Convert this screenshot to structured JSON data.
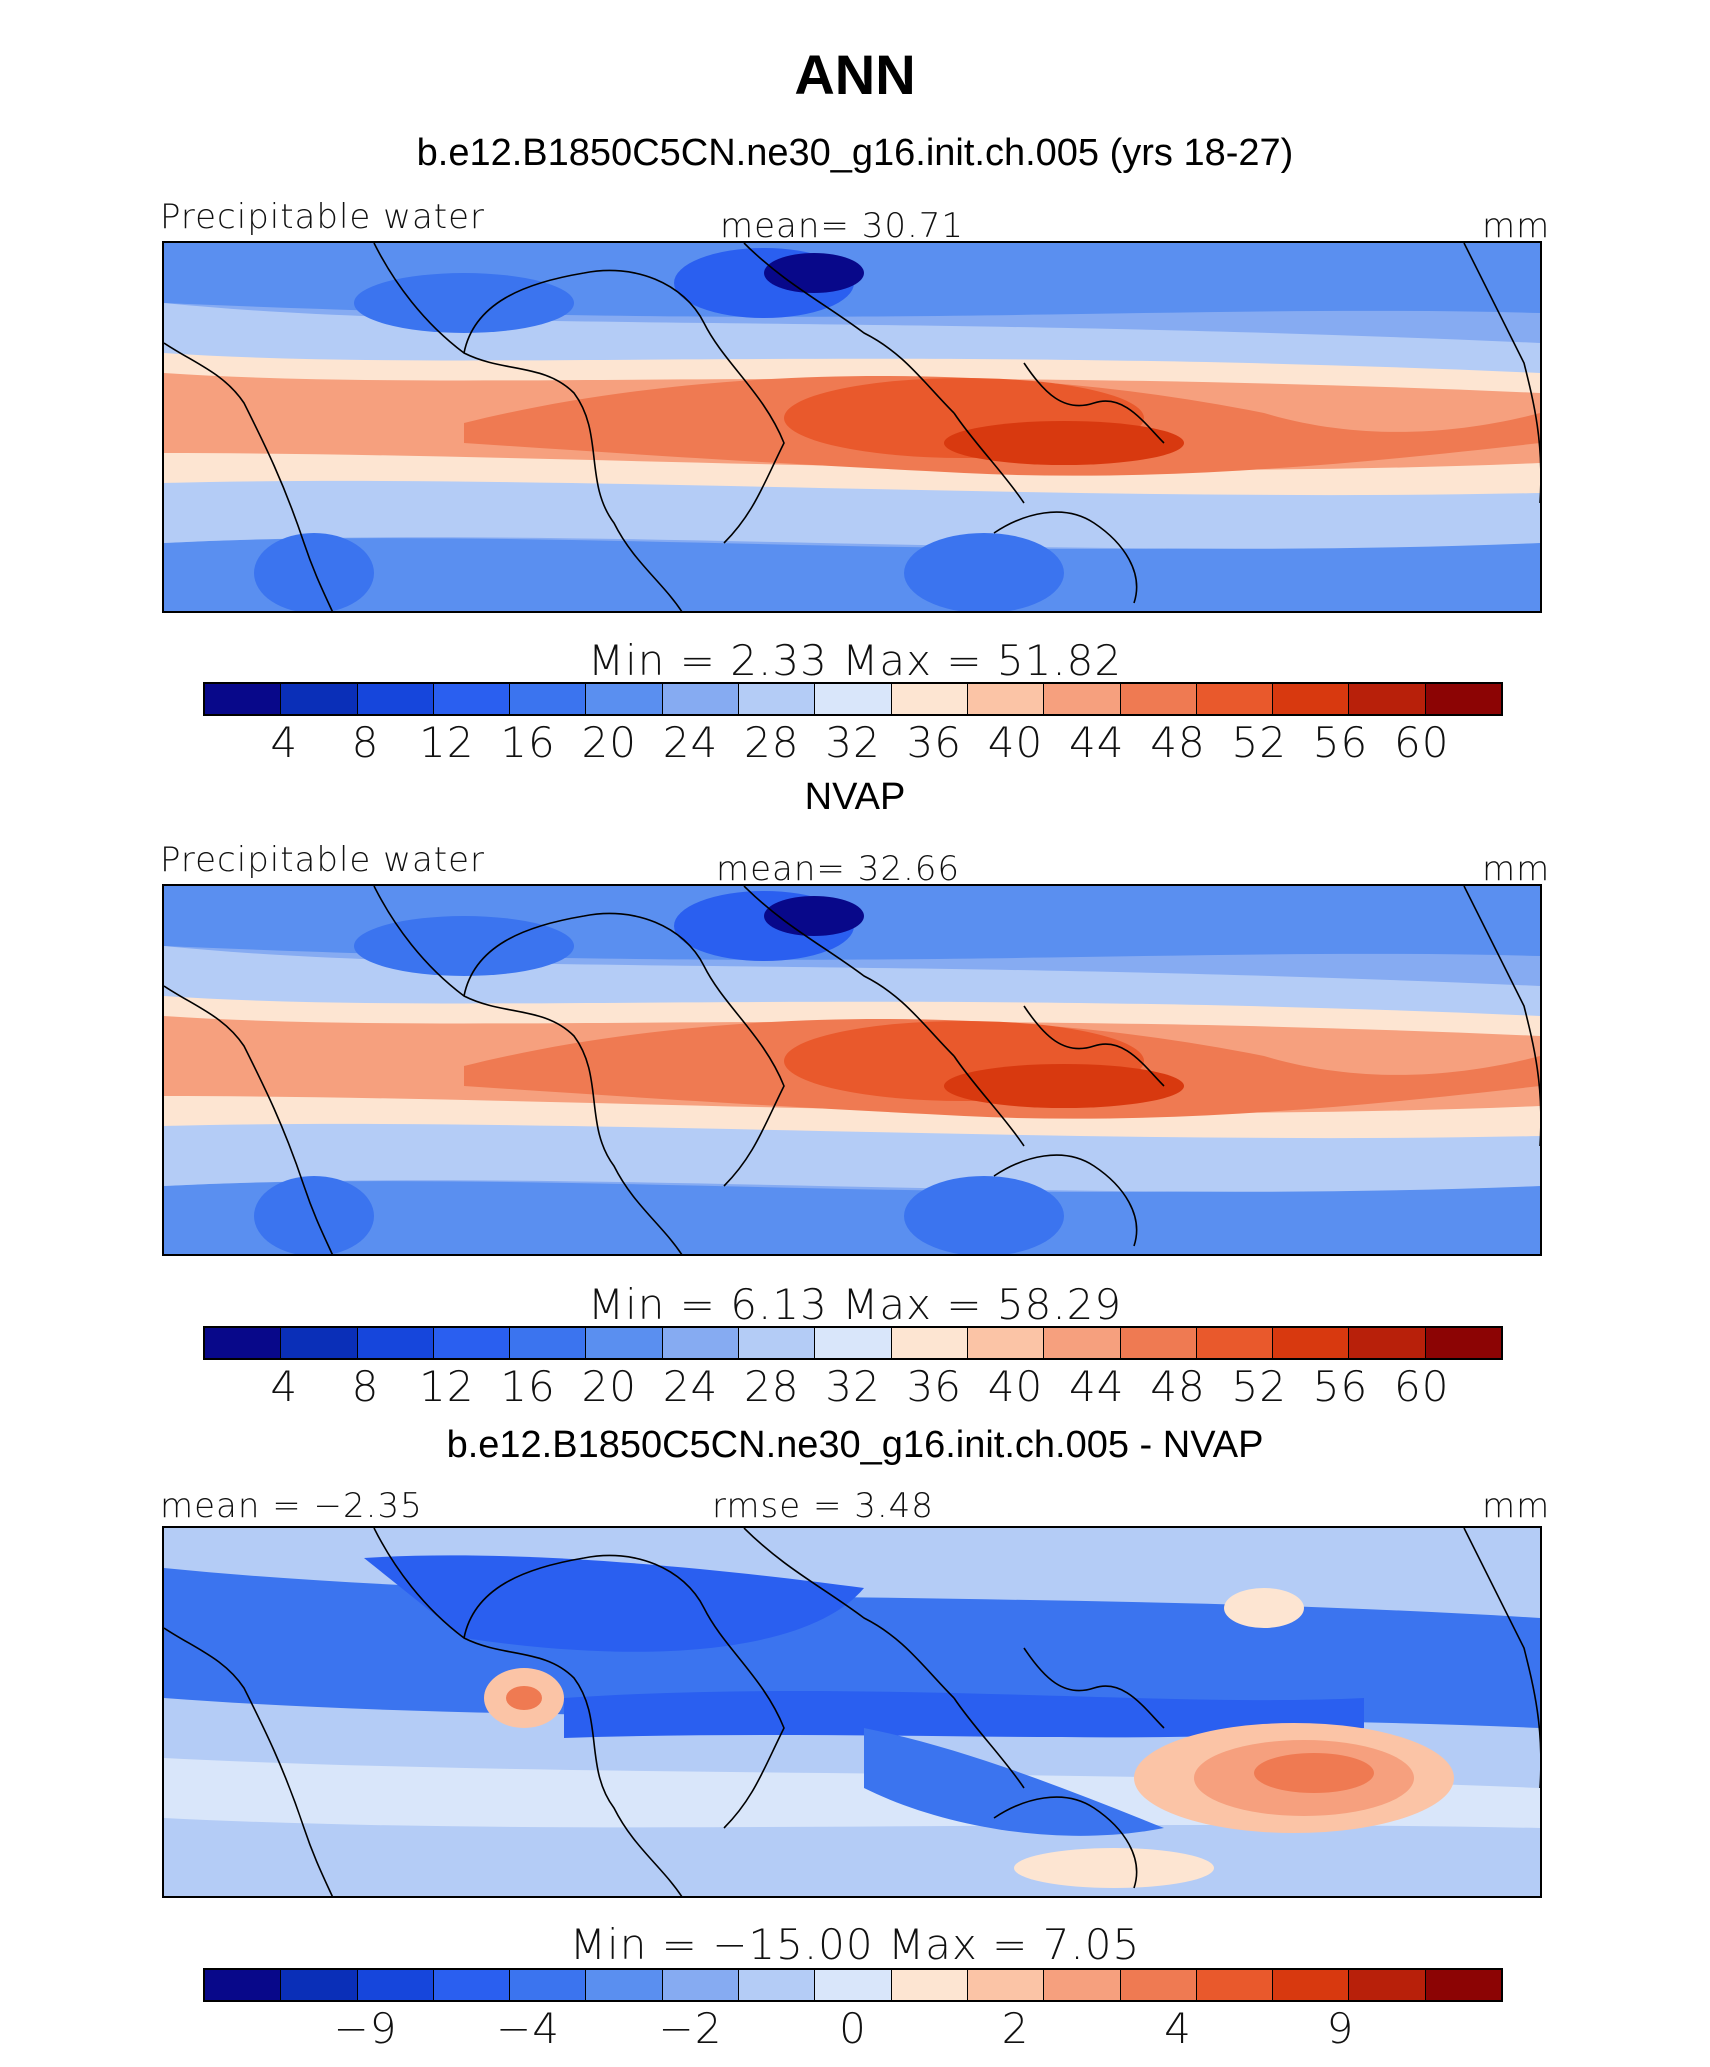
{
  "title": "ANN",
  "colors": [
    "#08088a",
    "#0a2fb8",
    "#1646dc",
    "#2a5ff0",
    "#3b74ef",
    "#5a8ff0",
    "#86abf2",
    "#b4ccf6",
    "#d9e6fa",
    "#fde5d2",
    "#fbc4a6",
    "#f6a07e",
    "#ef7a52",
    "#e9592c",
    "#d8390f",
    "#b8200a",
    "#8c0404"
  ],
  "panels": [
    {
      "subtitle": "b.e12.B1850C5CN.ne30_g16.init.ch.005 (yrs 18-27)",
      "left_label": "Precipitable  water",
      "center_label": "mean=   30.71",
      "right_label": "mm",
      "minmax": "Min  =     2.33  Max  =    51.82",
      "ticks": [
        "4",
        "8",
        "12",
        "16",
        "20",
        "24",
        "28",
        "32",
        "36",
        "40",
        "44",
        "48",
        "52",
        "56",
        "60"
      ]
    },
    {
      "subtitle": "NVAP",
      "left_label": "Precipitable  water",
      "center_label": "mean=   32.66",
      "right_label": "mm",
      "minmax": "Min  =     6.13  Max  =    58.29",
      "ticks": [
        "4",
        "8",
        "12",
        "16",
        "20",
        "24",
        "28",
        "32",
        "36",
        "40",
        "44",
        "48",
        "52",
        "56",
        "60"
      ]
    },
    {
      "subtitle": "b.e12.B1850C5CN.ne30_g16.init.ch.005 - NVAP",
      "left_label": "mean  =   −2.35",
      "center_label": "rmse  =      3.48",
      "right_label": "mm",
      "minmax": "Min  =  −15.00  Max  =     7.05",
      "ticks": [
        "−9",
        "−4",
        "−2",
        "0",
        "2",
        "4",
        "9"
      ]
    }
  ]
}
